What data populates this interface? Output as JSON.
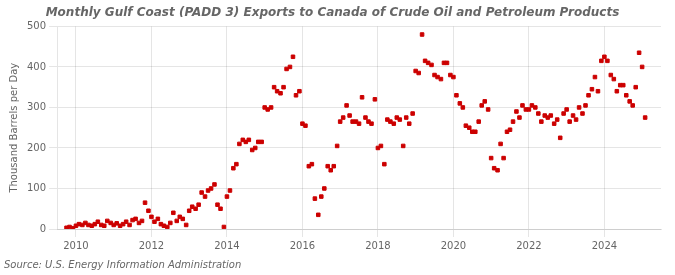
{
  "chart_data": {
    "type": "scatter",
    "title": "Monthly Gulf Coast (PADD 3) Exports to Canada of Crude Oil and Petroleum Products",
    "y_label": "Thousand Barrels per Day",
    "annotations": [
      "Source: U.S. Energy Information Administration"
    ],
    "color": "#cc0000",
    "marker": "square",
    "grid": true,
    "xlim": [
      2009.5,
      2025.5
    ],
    "ylim": [
      0,
      500
    ],
    "xticks": [
      2010,
      2012,
      2014,
      2016,
      2018,
      2020,
      2022,
      2024
    ],
    "yticks": [
      0,
      100,
      200,
      300,
      400,
      500
    ],
    "x": [
      2009.75,
      2009.83,
      2009.92,
      2010.0,
      2010.08,
      2010.17,
      2010.25,
      2010.33,
      2010.42,
      2010.5,
      2010.58,
      2010.67,
      2010.75,
      2010.83,
      2010.92,
      2011.0,
      2011.08,
      2011.17,
      2011.25,
      2011.33,
      2011.42,
      2011.5,
      2011.58,
      2011.67,
      2011.75,
      2011.83,
      2011.92,
      2012.0,
      2012.08,
      2012.17,
      2012.25,
      2012.33,
      2012.42,
      2012.5,
      2012.58,
      2012.67,
      2012.75,
      2012.83,
      2012.92,
      2013.0,
      2013.08,
      2013.17,
      2013.25,
      2013.33,
      2013.42,
      2013.5,
      2013.58,
      2013.67,
      2013.75,
      2013.83,
      2013.92,
      2014.0,
      2014.08,
      2014.17,
      2014.25,
      2014.33,
      2014.42,
      2014.5,
      2014.58,
      2014.67,
      2014.75,
      2014.83,
      2014.92,
      2015.0,
      2015.08,
      2015.17,
      2015.25,
      2015.33,
      2015.42,
      2015.5,
      2015.58,
      2015.67,
      2015.75,
      2015.83,
      2015.92,
      2016.0,
      2016.08,
      2016.17,
      2016.25,
      2016.33,
      2016.42,
      2016.5,
      2016.58,
      2016.67,
      2016.75,
      2016.83,
      2016.92,
      2017.0,
      2017.08,
      2017.17,
      2017.25,
      2017.33,
      2017.42,
      2017.5,
      2017.58,
      2017.67,
      2017.75,
      2017.83,
      2017.92,
      2018.0,
      2018.08,
      2018.17,
      2018.25,
      2018.33,
      2018.42,
      2018.5,
      2018.58,
      2018.67,
      2018.75,
      2018.83,
      2018.92,
      2019.0,
      2019.08,
      2019.17,
      2019.25,
      2019.33,
      2019.42,
      2019.5,
      2019.58,
      2019.67,
      2019.75,
      2019.83,
      2019.92,
      2020.0,
      2020.08,
      2020.17,
      2020.25,
      2020.33,
      2020.42,
      2020.5,
      2020.58,
      2020.67,
      2020.75,
      2020.83,
      2020.92,
      2021.0,
      2021.08,
      2021.17,
      2021.25,
      2021.33,
      2021.42,
      2021.5,
      2021.58,
      2021.67,
      2021.75,
      2021.83,
      2021.92,
      2022.0,
      2022.08,
      2022.17,
      2022.25,
      2022.33,
      2022.42,
      2022.5,
      2022.58,
      2022.67,
      2022.75,
      2022.83,
      2022.92,
      2023.0,
      2023.08,
      2023.17,
      2023.25,
      2023.33,
      2023.42,
      2023.5,
      2023.58,
      2023.67,
      2023.75,
      2023.83,
      2023.92,
      2024.0,
      2024.08,
      2024.17,
      2024.25,
      2024.33,
      2024.42,
      2024.5,
      2024.58,
      2024.67,
      2024.75,
      2024.83,
      2024.92,
      2025.0,
      2025.08
    ],
    "values": [
      3,
      5,
      2,
      8,
      12,
      10,
      15,
      10,
      8,
      12,
      18,
      10,
      8,
      20,
      15,
      10,
      14,
      8,
      12,
      18,
      10,
      22,
      25,
      15,
      20,
      65,
      45,
      30,
      18,
      25,
      12,
      8,
      5,
      15,
      40,
      20,
      30,
      25,
      10,
      45,
      55,
      50,
      60,
      90,
      80,
      95,
      100,
      110,
      60,
      50,
      5,
      80,
      95,
      150,
      160,
      210,
      220,
      215,
      220,
      195,
      200,
      215,
      215,
      300,
      295,
      300,
      350,
      340,
      335,
      350,
      395,
      400,
      425,
      330,
      340,
      260,
      255,
      155,
      160,
      75,
      35,
      80,
      100,
      155,
      145,
      155,
      205,
      265,
      275,
      305,
      280,
      265,
      265,
      260,
      325,
      275,
      265,
      260,
      320,
      200,
      205,
      160,
      270,
      265,
      260,
      275,
      270,
      205,
      275,
      260,
      285,
      390,
      385,
      480,
      415,
      410,
      405,
      380,
      375,
      370,
      410,
      410,
      380,
      375,
      330,
      310,
      300,
      255,
      250,
      240,
      240,
      265,
      305,
      315,
      295,
      175,
      150,
      145,
      210,
      175,
      240,
      245,
      265,
      290,
      275,
      305,
      295,
      295,
      305,
      300,
      285,
      265,
      280,
      275,
      280,
      260,
      270,
      225,
      285,
      295,
      265,
      280,
      270,
      300,
      285,
      305,
      330,
      345,
      375,
      340,
      415,
      425,
      415,
      380,
      370,
      340,
      355,
      355,
      330,
      315,
      305,
      350,
      435,
      400,
      275
    ]
  }
}
